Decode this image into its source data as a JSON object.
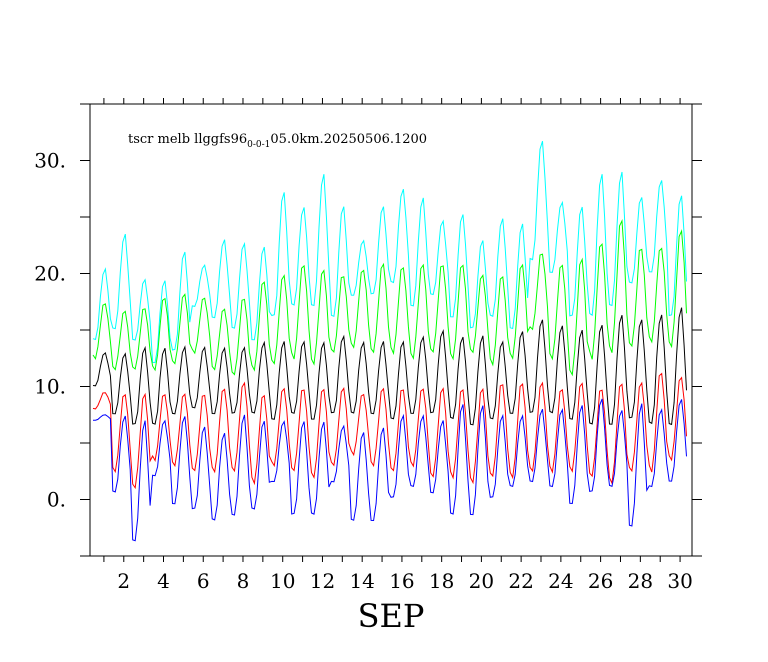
{
  "chart_data": {
    "type": "line",
    "title": "tscr melb llggfs96",
    "title_subscript": "0-0-1",
    "title_suffix": "05.0km.20250506.1200",
    "xlabel": "SEP",
    "ylabel": "",
    "xlim": [
      0.3,
      30.6
    ],
    "ylim": [
      -5,
      35
    ],
    "xticks": [
      2,
      4,
      6,
      8,
      10,
      12,
      14,
      16,
      18,
      20,
      22,
      24,
      26,
      28,
      30
    ],
    "yticks": [
      0,
      10,
      20,
      30
    ],
    "ytick_labels": [
      "0.",
      "10.",
      "20.",
      "30."
    ],
    "samples_per_day": 8,
    "series": [
      {
        "color": "#00ffff",
        "mins": [
          14,
          15,
          14,
          12,
          13,
          17,
          16,
          15,
          14,
          16,
          17,
          17,
          16,
          18,
          18,
          19,
          17,
          18,
          16,
          15,
          16,
          15,
          21,
          20,
          16,
          16,
          17,
          19,
          20,
          16
        ],
        "maxs": [
          20.5,
          23.5,
          19.5,
          19.5,
          22,
          20.8,
          23,
          22.7,
          22.5,
          27.3,
          26,
          28.8,
          26,
          23,
          26,
          27.6,
          26.7,
          24.7,
          25.4,
          23,
          25,
          24.4,
          31.8,
          26.4,
          26,
          29,
          29,
          26.8,
          28.4,
          27
        ]
      },
      {
        "color": "#00ff00",
        "mins": [
          12.5,
          11.5,
          11.5,
          11.5,
          12,
          13,
          11.5,
          11,
          11.5,
          12,
          12.5,
          12,
          13,
          13.5,
          13,
          13,
          12.5,
          13,
          12.5,
          13,
          12,
          12.5,
          15,
          12.5,
          11,
          12.5,
          13,
          13.5,
          14,
          13.5
        ],
        "maxs": [
          17.5,
          16.8,
          17.1,
          18,
          18.3,
          18,
          17,
          18,
          19.5,
          20,
          21,
          20.5,
          20,
          20.5,
          21,
          20.8,
          21,
          21,
          21,
          20,
          20,
          21,
          22,
          21,
          21.5,
          23,
          25,
          22.5,
          22.5,
          24
        ]
      },
      {
        "color": "#000000",
        "mins": [
          10,
          7.5,
          6.5,
          6.5,
          7.5,
          8,
          7.5,
          7.5,
          7.5,
          7,
          7.5,
          7,
          7.5,
          7.5,
          7.5,
          7,
          7.5,
          7.5,
          7,
          6.5,
          7,
          7.5,
          7.5,
          7.5,
          7,
          6.5,
          6.5,
          7,
          6.5,
          6.5
        ],
        "maxs": [
          13,
          13,
          13.5,
          13.5,
          13.5,
          13.5,
          13.5,
          13.5,
          14,
          14,
          14,
          14,
          14.5,
          14,
          14,
          14,
          14.5,
          15,
          14.5,
          14.5,
          14,
          15,
          16,
          15.5,
          15,
          15.5,
          16.5,
          16,
          16.5,
          17
        ]
      },
      {
        "color": "#ff0000",
        "mins": [
          8,
          2.5,
          1,
          3.5,
          3,
          2.5,
          2.5,
          2.5,
          1.5,
          3,
          2.5,
          2,
          3,
          4,
          3,
          2.5,
          3,
          2,
          2,
          1.5,
          2,
          2,
          2.5,
          2.5,
          2.5,
          2,
          1.5,
          2.5,
          2.5,
          3.5
        ],
        "maxs": [
          9.5,
          9.5,
          9.5,
          9.5,
          9.5,
          9.5,
          10,
          10.5,
          9.5,
          10,
          10,
          10,
          10,
          9.5,
          10,
          10,
          10,
          10,
          10,
          10,
          10.5,
          10.5,
          10.5,
          10,
          10.5,
          10,
          10.5,
          10.5,
          11.5,
          11
        ]
      },
      {
        "color": "#0000ff",
        "mins": [
          7,
          0.5,
          -3.8,
          2,
          -0.5,
          -1,
          -2,
          -1.5,
          -1,
          1.5,
          -1.5,
          -1.5,
          1.5,
          -2,
          -2,
          0,
          1,
          0.5,
          -1.5,
          -1.5,
          0,
          1,
          1.5,
          1,
          -0.5,
          0.5,
          1,
          -2.5,
          1,
          1.5
        ],
        "maxs": [
          7.5,
          7.5,
          7,
          7,
          7.5,
          6.5,
          6,
          7.5,
          7,
          7,
          7,
          7,
          6.5,
          6,
          6.5,
          7.5,
          7.5,
          7,
          8.5,
          8.5,
          7.5,
          7.5,
          8,
          8,
          8.5,
          9,
          8,
          8.5,
          8,
          9
        ]
      }
    ]
  }
}
